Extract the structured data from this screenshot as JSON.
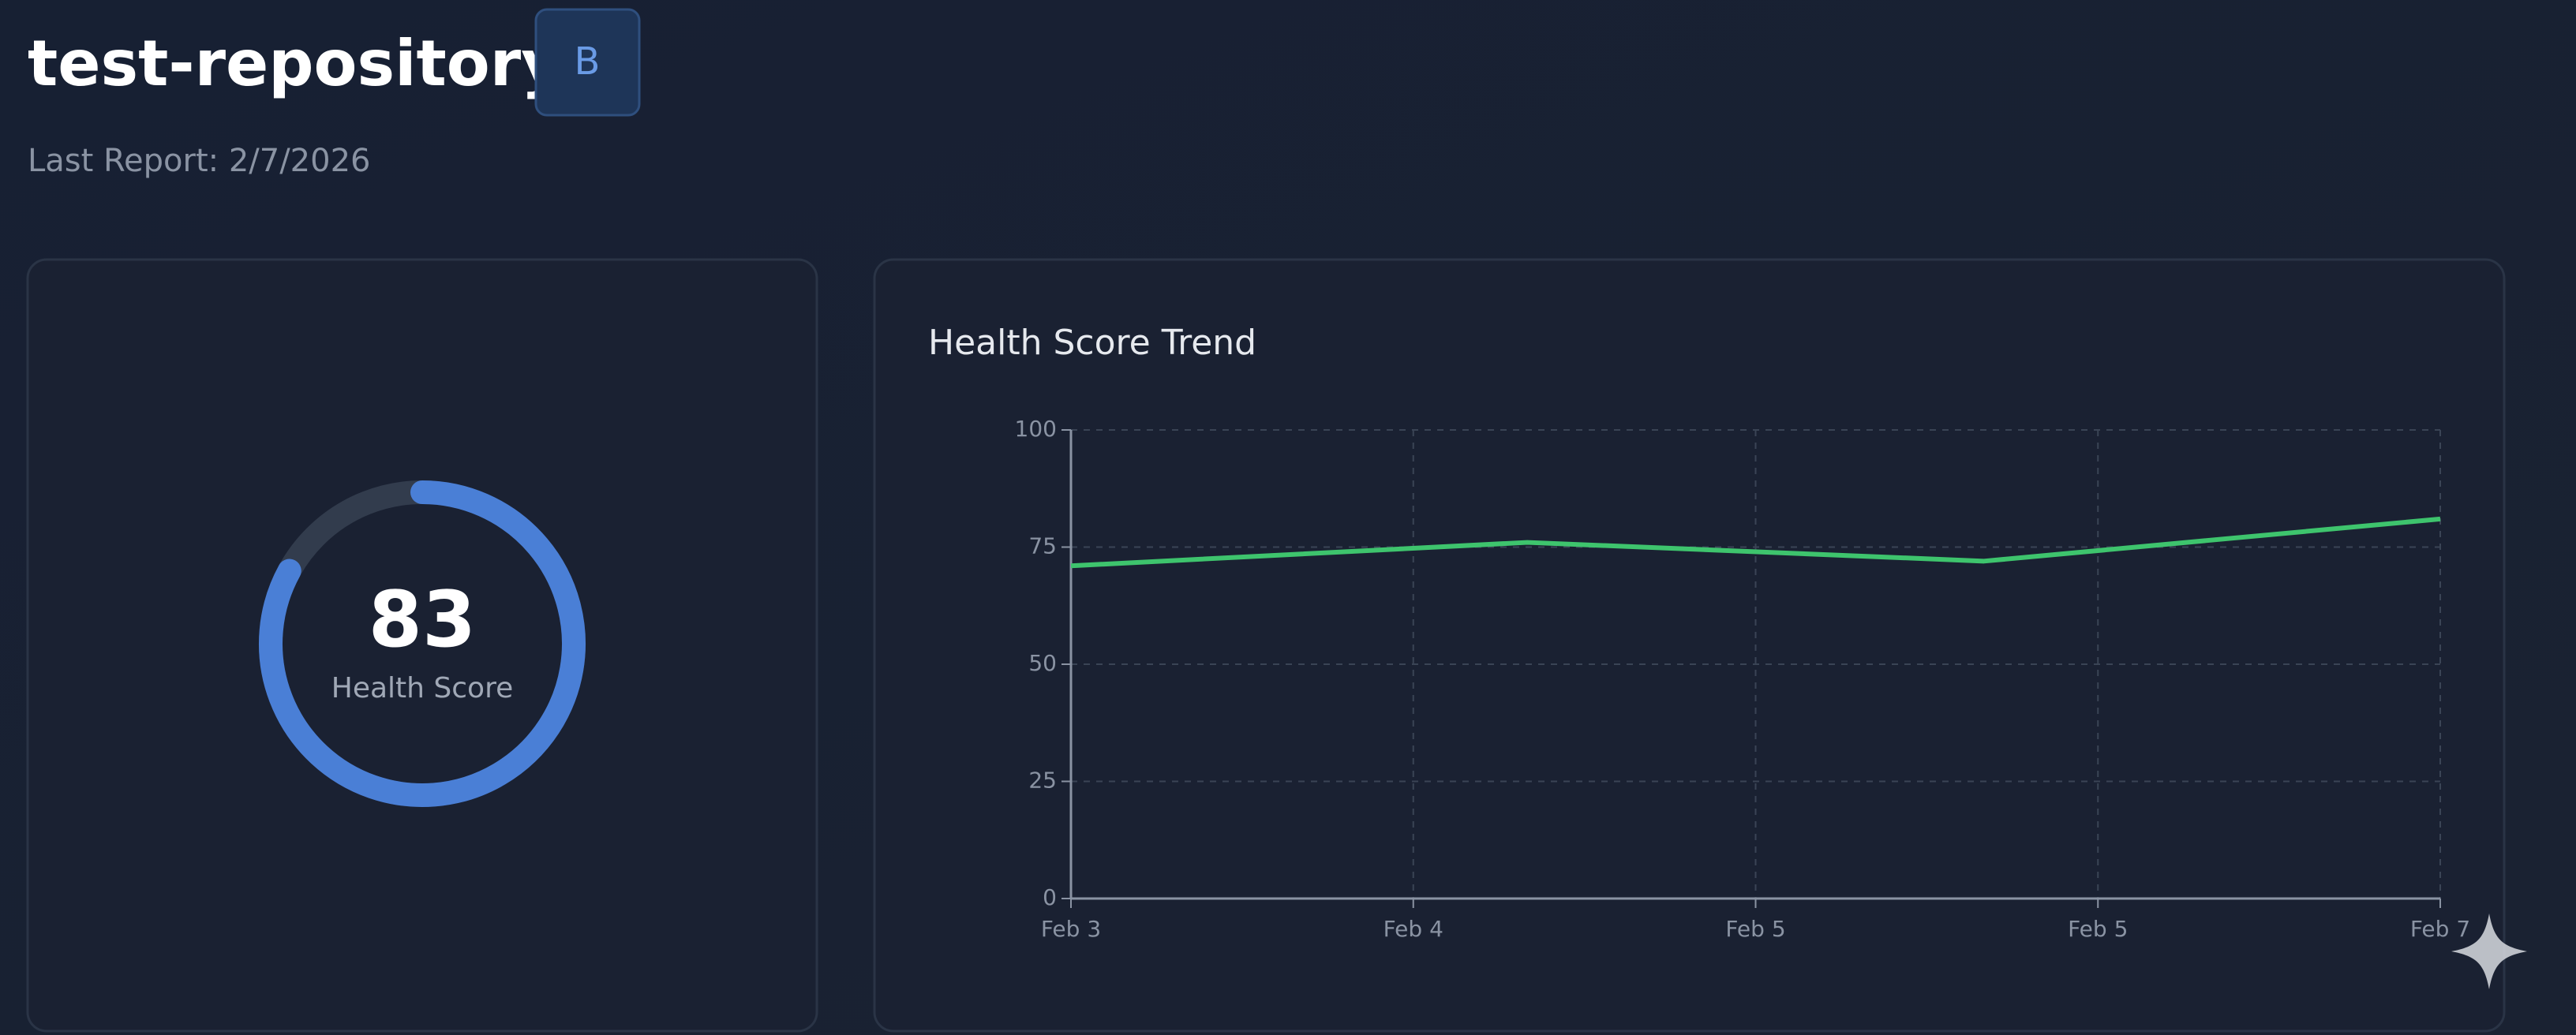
{
  "header": {
    "title": "test-repository",
    "badge": "B",
    "last_report": "Last Report: 2/7/2026"
  },
  "score_card": {
    "value": 83,
    "label": "Health Score",
    "lim": [
      0,
      100
    ],
    "color": "#4a7fd6"
  },
  "chart_data": {
    "type": "line",
    "title": "Health Score Trend",
    "x": [
      0,
      1.333,
      2.667,
      4
    ],
    "xlim": [
      0,
      4
    ],
    "xticks": [
      {
        "value": 0,
        "label": "Feb 3"
      },
      {
        "value": 1,
        "label": "Feb 4"
      },
      {
        "value": 2,
        "label": "Feb 5"
      },
      {
        "value": 3,
        "label": "Feb 5"
      },
      {
        "value": 4,
        "label": "Feb 7"
      }
    ],
    "series": [
      {
        "name": "Health Score",
        "color": "#3ec46d",
        "values": [
          71,
          76,
          72,
          81
        ]
      }
    ],
    "ylim": [
      0,
      100
    ],
    "yticks": [
      0,
      25,
      50,
      75,
      100
    ],
    "grid": true
  }
}
